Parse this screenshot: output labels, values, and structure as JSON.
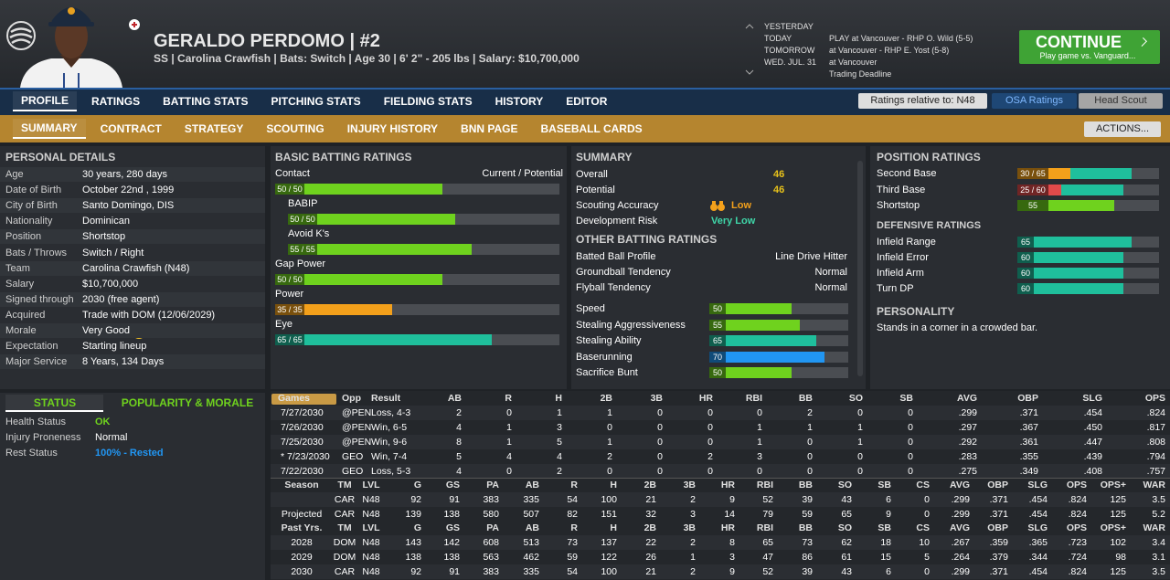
{
  "header": {
    "title": "GERALDO PERDOMO  |  #2",
    "subtitle": "SS | Carolina Crawfish  |  Bats: Switch  |  Age 30  |  6' 2\" - 205 lbs  |  Salary: $10,700,000"
  },
  "schedule": [
    {
      "day": "YESTERDAY",
      "event": null
    },
    {
      "day": "TODAY",
      "event": "PLAY at Vancouver - RHP O. Wild (5-5)"
    },
    {
      "day": "TOMORROW",
      "event": "at Vancouver - RHP E. Yost (5-8)"
    },
    {
      "day": "WED. JUL. 31",
      "event": "at Vancouver"
    },
    {
      "day": null,
      "event": "Trading Deadline"
    }
  ],
  "continue_button": {
    "label": "CONTINUE",
    "sublabel": "Play game vs. Vanguard..."
  },
  "nav_tabs": [
    "PROFILE",
    "RATINGS",
    "BATTING STATS",
    "PITCHING STATS",
    "FIELDING STATS",
    "HISTORY",
    "EDITOR"
  ],
  "active_nav_tab": 0,
  "ratings_dropdown": "Ratings relative to: N48",
  "osa_button": "OSA Ratings",
  "scout_button": "Head Scout",
  "sub_tabs": [
    "SUMMARY",
    "CONTRACT",
    "STRATEGY",
    "SCOUTING",
    "INJURY HISTORY",
    "BNN PAGE",
    "BASEBALL CARDS"
  ],
  "active_sub_tab": 0,
  "actions_button": "ACTIONS...",
  "personal_details": {
    "title": "PERSONAL DETAILS",
    "rows": [
      {
        "label": "Age",
        "value": "30 years, 280 days"
      },
      {
        "label": "Date of Birth",
        "value": "October 22nd , 1999"
      },
      {
        "label": "City of Birth",
        "value": "Santo Domingo, DIS"
      },
      {
        "label": "Nationality",
        "value": "Dominican"
      },
      {
        "label": "Position",
        "value": "Shortstop"
      },
      {
        "label": "Bats / Throws",
        "value": "Switch / Right"
      },
      {
        "label": "Team",
        "value": "Carolina Crawfish (N48)"
      },
      {
        "label": "Salary",
        "value": "$10,700,000"
      },
      {
        "label": "Signed through",
        "value": "2030 (free agent)"
      },
      {
        "label": "Acquired",
        "value": "Trade with DOM (12/06/2029)"
      },
      {
        "label": "Morale",
        "value": "Very Good"
      },
      {
        "label": "Expectation",
        "value": "Starting lineup"
      },
      {
        "label": "Major Service",
        "value": "8 Years, 134 Days"
      }
    ]
  },
  "batting_ratings": {
    "title": "BASIC BATTING RATINGS",
    "column_label": "Current / Potential",
    "rows": [
      {
        "name": "Contact",
        "label": "50 / 50",
        "current": 50,
        "potential": 50,
        "indent": false
      },
      {
        "name": "BABIP",
        "label": "50 / 50",
        "current": 50,
        "potential": 50,
        "indent": true
      },
      {
        "name": "Avoid K's",
        "label": "55 / 55",
        "current": 55,
        "potential": 55,
        "indent": true
      },
      {
        "name": "Gap Power",
        "label": "50 / 50",
        "current": 50,
        "potential": 50,
        "indent": false
      },
      {
        "name": "Power",
        "label": "35 / 35",
        "current": 35,
        "potential": 35,
        "indent": false
      },
      {
        "name": "Eye",
        "label": "65 / 65",
        "current": 65,
        "potential": 65,
        "indent": false
      }
    ]
  },
  "summary": {
    "title": "SUMMARY",
    "rows": [
      {
        "label": "Overall",
        "value": 46
      },
      {
        "label": "Potential",
        "value": 46
      },
      {
        "label": "Scouting Accuracy",
        "value": "Low"
      },
      {
        "label": "Development Risk",
        "value": "Very Low"
      }
    ],
    "other_title": "OTHER BATTING RATINGS",
    "other_text_rows": [
      {
        "label": "Batted Ball Profile",
        "value": "Line Drive Hitter"
      },
      {
        "label": "Groundball Tendency",
        "value": "Normal"
      },
      {
        "label": "Flyball Tendency",
        "value": "Normal"
      }
    ],
    "other_bar_rows": [
      {
        "name": "Speed",
        "value": 50
      },
      {
        "name": "Stealing Aggressiveness",
        "value": 55
      },
      {
        "name": "Stealing Ability",
        "value": 65
      },
      {
        "name": "Baserunning",
        "value": 70
      },
      {
        "name": "Sacrifice Bunt",
        "value": 50
      }
    ]
  },
  "position_ratings": {
    "title": "POSITION RATINGS",
    "rows": [
      {
        "name": "Second Base",
        "label": "30 / 65",
        "current": 30,
        "potential": 65
      },
      {
        "name": "Third Base",
        "label": "25 / 60",
        "current": 25,
        "potential": 60
      },
      {
        "name": "Shortstop",
        "value": 55
      }
    ],
    "defensive_title": "DEFENSIVE RATINGS",
    "defensive_rows": [
      {
        "name": "Infield Range",
        "value": 65
      },
      {
        "name": "Infield Error",
        "value": 60
      },
      {
        "name": "Infield Arm",
        "value": 60
      },
      {
        "name": "Turn DP",
        "value": 60
      }
    ],
    "personality_title": "PERSONALITY",
    "personality": "Stands in a corner in a crowded bar."
  },
  "status": {
    "tabs": [
      "STATUS",
      "POPULARITY & MORALE"
    ],
    "rows": [
      {
        "label": "Health Status",
        "value": "OK"
      },
      {
        "label": "Injury Proneness",
        "value": "Normal"
      },
      {
        "label": "Rest Status",
        "value": "100% - Rested"
      }
    ]
  },
  "game_log": {
    "columns": [
      "Games",
      "Opp",
      "Result",
      "AB",
      "R",
      "H",
      "2B",
      "3B",
      "HR",
      "RBI",
      "BB",
      "SO",
      "SB",
      "AVG",
      "OBP",
      "SLG",
      "OPS"
    ],
    "rows": [
      [
        "7/27/2030",
        "@PEN",
        "Loss, 4-3",
        "2",
        "0",
        "1",
        "1",
        "0",
        "0",
        "0",
        "2",
        "0",
        "0",
        ".299",
        ".371",
        ".454",
        ".824"
      ],
      [
        "7/26/2030",
        "@PEN",
        "Win, 6-5",
        "4",
        "1",
        "3",
        "0",
        "0",
        "0",
        "1",
        "1",
        "1",
        "0",
        ".297",
        ".367",
        ".450",
        ".817"
      ],
      [
        "7/25/2030",
        "@PEN",
        "Win, 9-6",
        "8",
        "1",
        "5",
        "1",
        "0",
        "0",
        "1",
        "0",
        "1",
        "0",
        ".292",
        ".361",
        ".447",
        ".808"
      ],
      [
        "* 7/23/2030",
        "GEO",
        "Win, 7-4",
        "5",
        "4",
        "4",
        "2",
        "0",
        "2",
        "3",
        "0",
        "0",
        "0",
        ".283",
        ".355",
        ".439",
        ".794"
      ],
      [
        "7/22/2030",
        "GEO",
        "Loss, 5-3",
        "4",
        "0",
        "2",
        "0",
        "0",
        "0",
        "0",
        "0",
        "0",
        "0",
        ".275",
        ".349",
        ".408",
        ".757"
      ]
    ]
  },
  "season_stats": {
    "columns": [
      "Season",
      "TM",
      "LVL",
      "G",
      "GS",
      "PA",
      "AB",
      "R",
      "H",
      "2B",
      "3B",
      "HR",
      "RBI",
      "BB",
      "SO",
      "SB",
      "CS",
      "AVG",
      "OBP",
      "SLG",
      "OPS",
      "OPS+",
      "WAR"
    ],
    "rows": [
      [
        null,
        "CAR",
        "N48",
        "92",
        "91",
        "383",
        "335",
        "54",
        "100",
        "21",
        "2",
        "9",
        "52",
        "39",
        "43",
        "6",
        "0",
        ".299",
        ".371",
        ".454",
        ".824",
        "125",
        "3.5"
      ],
      [
        "Projected",
        "CAR",
        "N48",
        "139",
        "138",
        "580",
        "507",
        "82",
        "151",
        "32",
        "3",
        "14",
        "79",
        "59",
        "65",
        "9",
        "0",
        ".299",
        ".371",
        ".454",
        ".824",
        "125",
        "5.2"
      ]
    ]
  },
  "past_stats": {
    "columns": [
      "Past Yrs.",
      "TM",
      "LVL",
      "G",
      "GS",
      "PA",
      "AB",
      "R",
      "H",
      "2B",
      "3B",
      "HR",
      "RBI",
      "BB",
      "SO",
      "SB",
      "CS",
      "AVG",
      "OBP",
      "SLG",
      "OPS",
      "OPS+",
      "WAR"
    ],
    "rows": [
      [
        "2028",
        "DOM",
        "N48",
        "143",
        "142",
        "608",
        "513",
        "73",
        "137",
        "22",
        "2",
        "8",
        "65",
        "73",
        "62",
        "18",
        "10",
        ".267",
        ".359",
        ".365",
        ".723",
        "102",
        "3.4"
      ],
      [
        "2029",
        "DOM",
        "N48",
        "138",
        "138",
        "563",
        "462",
        "59",
        "122",
        "26",
        "1",
        "3",
        "47",
        "86",
        "61",
        "15",
        "5",
        ".264",
        ".379",
        ".344",
        ".724",
        "98",
        "3.1"
      ],
      [
        "2030",
        "CAR",
        "N48",
        "92",
        "91",
        "383",
        "335",
        "54",
        "100",
        "21",
        "2",
        "9",
        "52",
        "39",
        "43",
        "6",
        "0",
        ".299",
        ".371",
        ".454",
        ".824",
        "125",
        "3.5"
      ]
    ]
  }
}
